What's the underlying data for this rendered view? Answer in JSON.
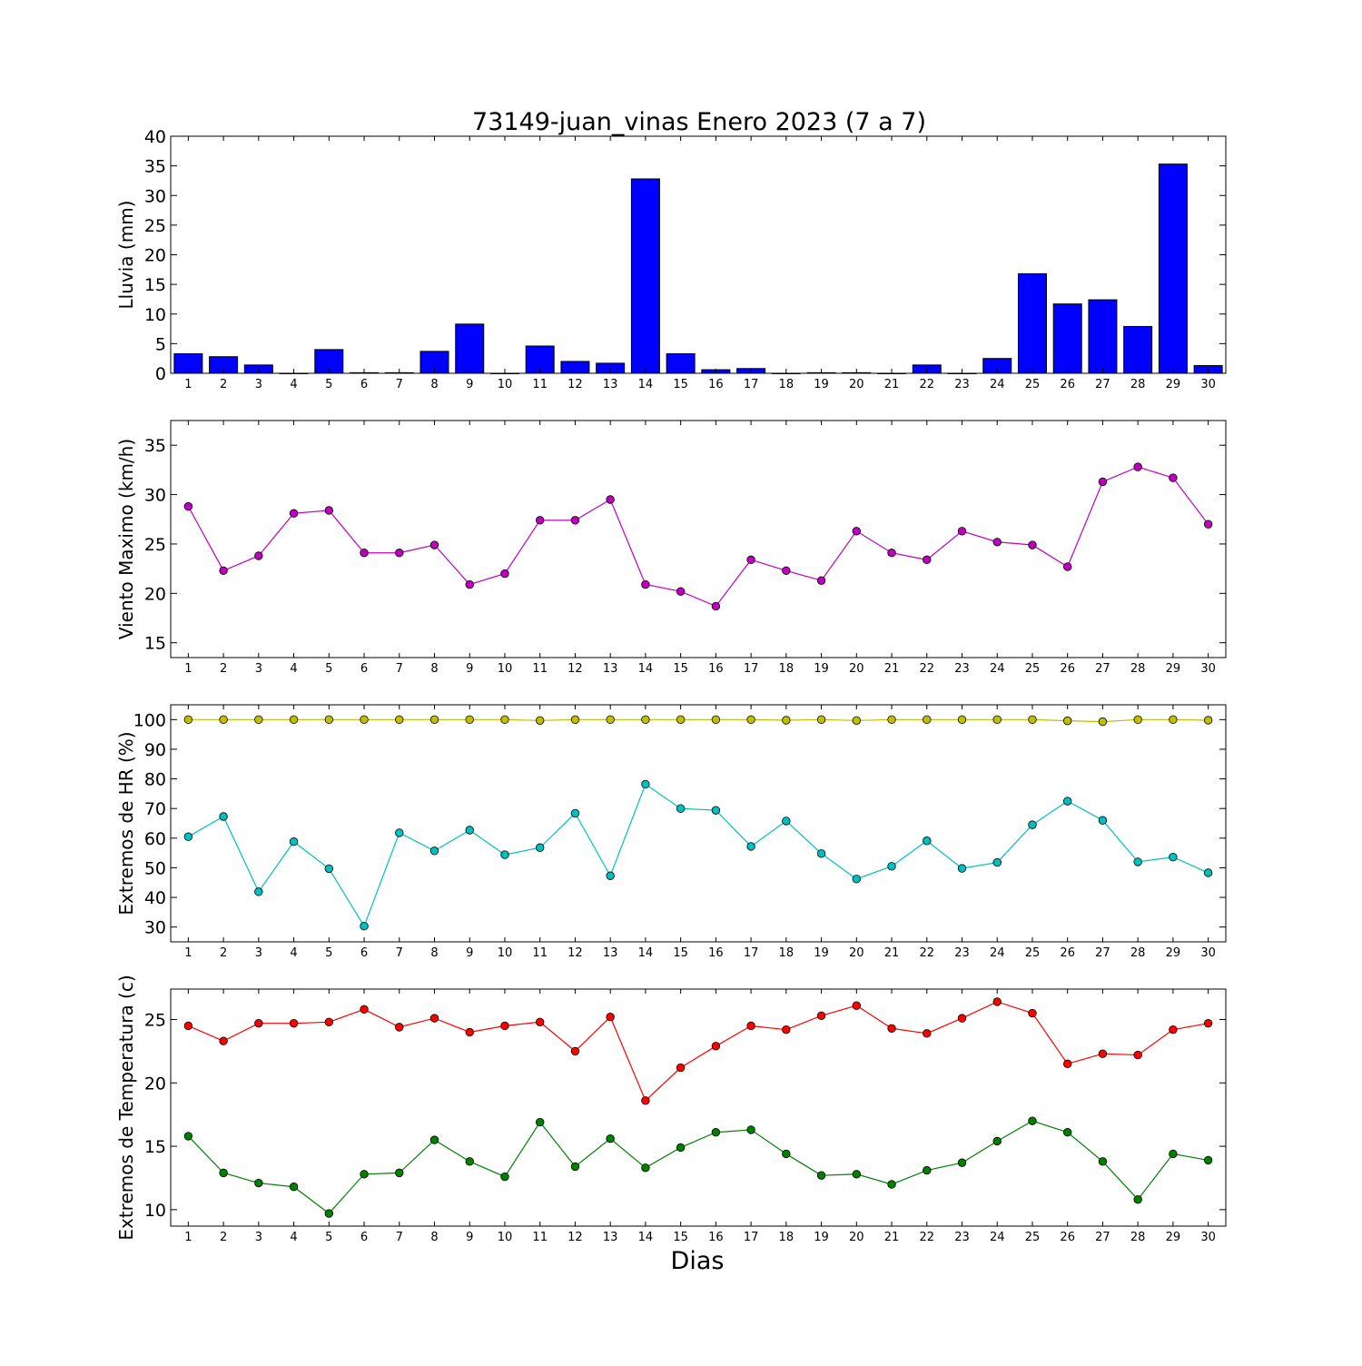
{
  "figure": {
    "title": "73149-juan_vinas Enero 2023  (7 a 7)",
    "xlabel": "Dias",
    "colors": {
      "rain": "#0000ff",
      "wind": "#bf00bf",
      "hr_max": "#bfbf00",
      "hr_min": "#00bfbf",
      "t_max": "#ff0000",
      "t_min": "#008000"
    }
  },
  "chart_data": [
    {
      "type": "bar",
      "ylabel": "Lluvia (mm)",
      "x": [
        1,
        2,
        3,
        4,
        5,
        6,
        7,
        8,
        9,
        10,
        11,
        12,
        13,
        14,
        15,
        16,
        17,
        18,
        19,
        20,
        21,
        22,
        23,
        24,
        25,
        26,
        27,
        28,
        29,
        30
      ],
      "xlim": [
        0.5,
        30.5
      ],
      "ylim": [
        0,
        40
      ],
      "yticks": [
        0,
        5,
        10,
        15,
        20,
        25,
        30,
        35,
        40
      ],
      "series": [
        {
          "color": "#0000ff",
          "values": [
            3.3,
            2.8,
            1.4,
            0,
            4.0,
            0.1,
            0.1,
            3.7,
            8.3,
            0,
            4.6,
            2.0,
            1.7,
            32.8,
            3.3,
            0.6,
            0.8,
            0,
            0.1,
            0.1,
            0,
            1.4,
            0,
            2.5,
            16.8,
            11.7,
            12.4,
            7.9,
            35.3,
            1.3
          ]
        }
      ]
    },
    {
      "type": "line",
      "ylabel": "Viento Maximo (km/h)",
      "x": [
        1,
        2,
        3,
        4,
        5,
        6,
        7,
        8,
        9,
        10,
        11,
        12,
        13,
        14,
        15,
        16,
        17,
        18,
        19,
        20,
        21,
        22,
        23,
        24,
        25,
        26,
        27,
        28,
        29,
        30
      ],
      "xlim": [
        0.5,
        30.5
      ],
      "ylim": [
        13.5,
        37.5
      ],
      "yticks": [
        15,
        20,
        25,
        30,
        35
      ],
      "series": [
        {
          "color": "#bf00bf",
          "values": [
            28.8,
            22.3,
            23.8,
            28.1,
            28.4,
            24.1,
            24.1,
            24.9,
            20.9,
            22.0,
            27.4,
            27.4,
            29.5,
            20.9,
            20.2,
            18.7,
            23.4,
            22.3,
            21.3,
            26.3,
            24.1,
            23.4,
            26.3,
            25.2,
            24.9,
            22.7,
            31.3,
            32.8,
            31.7,
            27.0
          ]
        }
      ]
    },
    {
      "type": "line",
      "ylabel": "Extremos de HR (%)",
      "x": [
        1,
        2,
        3,
        4,
        5,
        6,
        7,
        8,
        9,
        10,
        11,
        12,
        13,
        14,
        15,
        16,
        17,
        18,
        19,
        20,
        21,
        22,
        23,
        24,
        25,
        26,
        27,
        28,
        29,
        30
      ],
      "xlim": [
        0.5,
        30.5
      ],
      "ylim": [
        25,
        105
      ],
      "yticks": [
        30,
        40,
        50,
        60,
        70,
        80,
        90,
        100
      ],
      "series": [
        {
          "color": "#bfbf00",
          "values": [
            100,
            100,
            100,
            100,
            100,
            100,
            100,
            100,
            100,
            100,
            99.7,
            100,
            100,
            100,
            100,
            100,
            100,
            99.8,
            100,
            99.7,
            100,
            100,
            100,
            100,
            100,
            99.6,
            99.3,
            100,
            100,
            99.8
          ]
        },
        {
          "color": "#00bfbf",
          "values": [
            60.5,
            67.3,
            41.9,
            58.8,
            49.7,
            30.3,
            61.8,
            55.7,
            62.7,
            54.4,
            56.8,
            68.4,
            47.3,
            78.2,
            70.0,
            69.4,
            57.2,
            65.8,
            54.8,
            46.2,
            50.5,
            59.1,
            49.8,
            51.8,
            64.5,
            72.5,
            66.0,
            52.0,
            53.6,
            48.3
          ]
        }
      ]
    },
    {
      "type": "line",
      "ylabel": "Extremos de Temperatura (c)",
      "x": [
        1,
        2,
        3,
        4,
        5,
        6,
        7,
        8,
        9,
        10,
        11,
        12,
        13,
        14,
        15,
        16,
        17,
        18,
        19,
        20,
        21,
        22,
        23,
        24,
        25,
        26,
        27,
        28,
        29,
        30
      ],
      "xlim": [
        0.5,
        30.5
      ],
      "ylim": [
        8.7,
        27.4
      ],
      "yticks": [
        10,
        15,
        20,
        25
      ],
      "series": [
        {
          "color": "#ff0000",
          "values": [
            24.5,
            23.3,
            24.7,
            24.7,
            24.8,
            25.8,
            24.4,
            25.1,
            24.0,
            24.5,
            24.8,
            22.5,
            25.2,
            18.6,
            21.2,
            22.9,
            24.5,
            24.2,
            25.3,
            26.1,
            24.3,
            23.9,
            25.1,
            26.4,
            25.5,
            21.5,
            22.3,
            22.2,
            24.2,
            24.7
          ]
        },
        {
          "color": "#008000",
          "values": [
            15.8,
            12.9,
            12.1,
            11.8,
            9.7,
            12.8,
            12.9,
            15.5,
            13.8,
            12.6,
            16.9,
            13.4,
            15.6,
            13.3,
            14.9,
            16.1,
            16.3,
            14.4,
            12.7,
            12.8,
            12.0,
            13.1,
            13.7,
            15.4,
            17.0,
            16.1,
            13.8,
            10.8,
            14.4,
            13.9
          ]
        }
      ]
    }
  ]
}
